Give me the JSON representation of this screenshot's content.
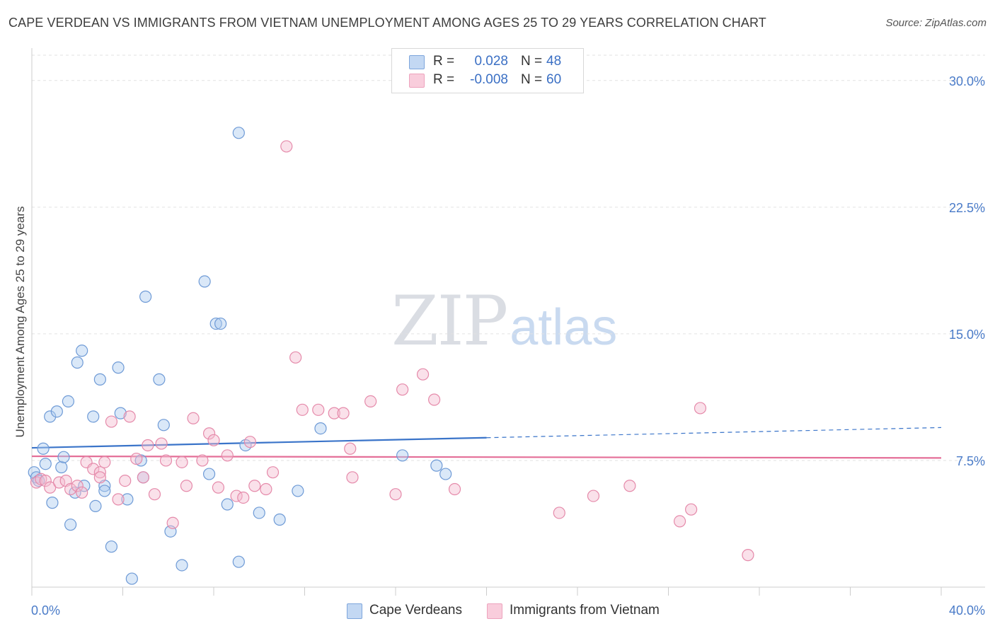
{
  "header": {
    "title": "CAPE VERDEAN VS IMMIGRANTS FROM VIETNAM UNEMPLOYMENT AMONG AGES 25 TO 29 YEARS CORRELATION CHART",
    "source": "Source: ZipAtlas.com"
  },
  "watermark": {
    "zip": "ZIP",
    "atlas": "atlas"
  },
  "legend": {
    "rows": [
      {
        "r_label": "R =",
        "r_value": "0.028",
        "n_label": "N =",
        "n_value": "48"
      },
      {
        "r_label": "R =",
        "r_value": "-0.008",
        "n_label": "N =",
        "n_value": "60"
      }
    ]
  },
  "bottom_legend": {
    "series1": "Cape Verdeans",
    "series2": "Immigrants from Vietnam"
  },
  "chart_data": {
    "type": "scatter",
    "title": "CAPE VERDEAN VS IMMIGRANTS FROM VIETNAM UNEMPLOYMENT AMONG AGES 25 TO 29 YEARS CORRELATION CHART",
    "xlabel": "",
    "ylabel": "Unemployment Among Ages 25 to 29 years",
    "xlim": [
      0,
      40
    ],
    "ylim": [
      0,
      31.5
    ],
    "x_tick_labels": [
      "0.0%",
      "40.0%"
    ],
    "y_ticks": [
      7.5,
      15.0,
      22.5,
      30.0
    ],
    "y_tick_labels": [
      "7.5%",
      "15.0%",
      "22.5%",
      "30.0%"
    ],
    "grid": true,
    "colors": {
      "series1_fill": "#aecbf0",
      "series1_stroke": "#6e9ad6",
      "series1_line": "#3a74c9",
      "series2_fill": "#f5bcd0",
      "series2_stroke": "#e58aaa",
      "series2_line": "#e46f98"
    },
    "series": [
      {
        "name": "Cape Verdeans",
        "points": [
          [
            0.1,
            6.8
          ],
          [
            0.2,
            6.5
          ],
          [
            0.3,
            6.3
          ],
          [
            0.5,
            8.2
          ],
          [
            0.6,
            7.3
          ],
          [
            0.8,
            10.1
          ],
          [
            0.9,
            5.0
          ],
          [
            1.1,
            10.4
          ],
          [
            1.3,
            7.1
          ],
          [
            1.4,
            7.7
          ],
          [
            1.6,
            11.0
          ],
          [
            1.7,
            3.7
          ],
          [
            1.9,
            5.6
          ],
          [
            2.0,
            13.3
          ],
          [
            2.2,
            14.0
          ],
          [
            2.3,
            6.0
          ],
          [
            2.7,
            10.1
          ],
          [
            2.8,
            4.8
          ],
          [
            3.0,
            12.3
          ],
          [
            3.2,
            6.0
          ],
          [
            3.2,
            5.7
          ],
          [
            3.5,
            2.4
          ],
          [
            3.8,
            13.0
          ],
          [
            3.9,
            10.3
          ],
          [
            4.2,
            5.2
          ],
          [
            4.4,
            0.5
          ],
          [
            4.8,
            7.5
          ],
          [
            4.9,
            6.5
          ],
          [
            5.0,
            17.2
          ],
          [
            5.6,
            12.3
          ],
          [
            5.8,
            9.6
          ],
          [
            6.1,
            3.3
          ],
          [
            6.6,
            1.3
          ],
          [
            7.6,
            18.1
          ],
          [
            7.8,
            6.7
          ],
          [
            8.1,
            15.6
          ],
          [
            8.3,
            15.6
          ],
          [
            8.6,
            4.9
          ],
          [
            9.1,
            1.5
          ],
          [
            9.4,
            8.4
          ],
          [
            10.0,
            4.4
          ],
          [
            10.9,
            4.0
          ],
          [
            11.7,
            5.7
          ],
          [
            12.7,
            9.4
          ],
          [
            16.3,
            7.8
          ],
          [
            17.8,
            7.2
          ],
          [
            18.2,
            6.7
          ],
          [
            9.1,
            26.9
          ]
        ],
        "trend": {
          "x0": 0,
          "y0": 8.25,
          "x1": 20,
          "y1": 8.85,
          "dashed_to_x": 40,
          "dashed_to_y": 9.45
        }
      },
      {
        "name": "Immigrants from Vietnam",
        "points": [
          [
            0.2,
            6.2
          ],
          [
            0.4,
            6.4
          ],
          [
            0.6,
            6.3
          ],
          [
            0.8,
            5.9
          ],
          [
            1.2,
            6.2
          ],
          [
            1.5,
            6.3
          ],
          [
            1.7,
            5.8
          ],
          [
            2.0,
            6.0
          ],
          [
            2.2,
            5.6
          ],
          [
            2.4,
            7.4
          ],
          [
            2.7,
            7.0
          ],
          [
            3.0,
            6.8
          ],
          [
            3.2,
            7.4
          ],
          [
            3.5,
            9.8
          ],
          [
            3.8,
            5.2
          ],
          [
            4.1,
            6.3
          ],
          [
            4.3,
            10.1
          ],
          [
            4.6,
            7.6
          ],
          [
            4.9,
            6.5
          ],
          [
            5.1,
            8.4
          ],
          [
            5.4,
            5.5
          ],
          [
            5.7,
            8.5
          ],
          [
            5.9,
            7.5
          ],
          [
            6.2,
            3.8
          ],
          [
            6.6,
            7.4
          ],
          [
            6.8,
            6.0
          ],
          [
            7.1,
            10.0
          ],
          [
            7.5,
            7.5
          ],
          [
            7.8,
            9.1
          ],
          [
            8.0,
            8.7
          ],
          [
            8.2,
            5.9
          ],
          [
            8.6,
            7.8
          ],
          [
            9.0,
            5.4
          ],
          [
            9.3,
            5.3
          ],
          [
            9.6,
            8.6
          ],
          [
            9.8,
            6.0
          ],
          [
            10.3,
            5.8
          ],
          [
            10.6,
            6.8
          ],
          [
            11.6,
            13.6
          ],
          [
            11.9,
            10.5
          ],
          [
            12.6,
            10.5
          ],
          [
            13.3,
            10.3
          ],
          [
            13.7,
            10.3
          ],
          [
            14.0,
            8.2
          ],
          [
            14.1,
            6.5
          ],
          [
            14.9,
            11.0
          ],
          [
            16.0,
            5.5
          ],
          [
            16.3,
            11.7
          ],
          [
            17.2,
            12.6
          ],
          [
            17.7,
            11.1
          ],
          [
            18.6,
            5.8
          ],
          [
            23.2,
            4.4
          ],
          [
            24.7,
            5.4
          ],
          [
            26.3,
            6.0
          ],
          [
            28.5,
            3.9
          ],
          [
            29.0,
            4.6
          ],
          [
            29.4,
            10.6
          ],
          [
            31.5,
            1.9
          ],
          [
            11.2,
            26.1
          ],
          [
            3.0,
            6.5
          ]
        ],
        "trend": {
          "x0": 0,
          "y0": 7.75,
          "x1": 40,
          "y1": 7.65
        }
      }
    ]
  }
}
